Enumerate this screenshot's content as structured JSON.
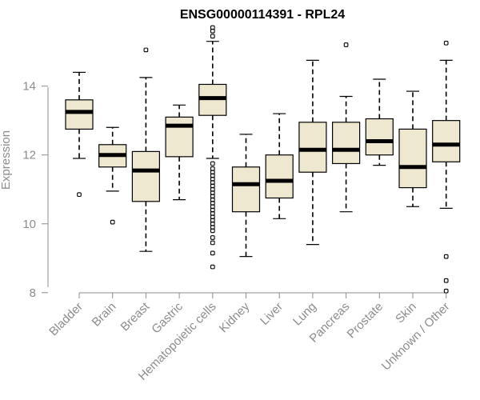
{
  "chart_data": {
    "type": "boxplot",
    "title": "ENSG00000114391 - RPL24",
    "xlabel": "",
    "ylabel": "Expression",
    "ylim": [
      7.95,
      15.85
    ],
    "yticks": [
      8,
      10,
      12,
      14
    ],
    "grid": false,
    "colors": {
      "box_fill": "#efe8d0",
      "median": "#000000",
      "stroke": "#000000"
    },
    "categories": [
      "Bladder",
      "Brain",
      "Breast",
      "Gastric",
      "Hematopoietic cells",
      "Kidney",
      "Liver",
      "Lung",
      "Pancreas",
      "Prostate",
      "Skin",
      "Unknown / Other"
    ],
    "boxes": [
      {
        "q1": 12.75,
        "median": 13.25,
        "q3": 13.6,
        "whisker_low": 11.9,
        "whisker_high": 14.4,
        "outliers": [
          10.85
        ]
      },
      {
        "q1": 11.65,
        "median": 12.0,
        "q3": 12.3,
        "whisker_low": 10.95,
        "whisker_high": 12.8,
        "outliers": [
          10.05
        ]
      },
      {
        "q1": 10.65,
        "median": 11.55,
        "q3": 12.1,
        "whisker_low": 9.2,
        "whisker_high": 14.25,
        "outliers": [
          15.05
        ]
      },
      {
        "q1": 11.95,
        "median": 12.85,
        "q3": 13.1,
        "whisker_low": 10.7,
        "whisker_high": 13.45,
        "outliers": []
      },
      {
        "q1": 13.15,
        "median": 13.65,
        "q3": 14.05,
        "whisker_low": 11.9,
        "whisker_high": 15.3,
        "outliers": [
          15.45,
          15.6,
          15.7,
          11.75,
          11.6,
          11.5,
          11.4,
          11.3,
          11.2,
          11.1,
          11.0,
          10.9,
          10.8,
          10.7,
          10.6,
          10.5,
          10.4,
          10.3,
          10.2,
          10.1,
          10.0,
          9.9,
          9.8,
          9.6,
          9.45,
          9.15,
          8.75
        ]
      },
      {
        "q1": 10.35,
        "median": 11.15,
        "q3": 11.65,
        "whisker_low": 9.05,
        "whisker_high": 12.6,
        "outliers": []
      },
      {
        "q1": 10.75,
        "median": 11.25,
        "q3": 12.0,
        "whisker_low": 10.15,
        "whisker_high": 13.2,
        "outliers": []
      },
      {
        "q1": 11.5,
        "median": 12.15,
        "q3": 12.95,
        "whisker_low": 9.4,
        "whisker_high": 14.75,
        "outliers": []
      },
      {
        "q1": 11.75,
        "median": 12.15,
        "q3": 12.95,
        "whisker_low": 10.35,
        "whisker_high": 13.7,
        "outliers": [
          15.2
        ]
      },
      {
        "q1": 12.0,
        "median": 12.4,
        "q3": 13.05,
        "whisker_low": 11.7,
        "whisker_high": 14.2,
        "outliers": []
      },
      {
        "q1": 11.05,
        "median": 11.65,
        "q3": 12.75,
        "whisker_low": 10.5,
        "whisker_high": 13.85,
        "outliers": []
      },
      {
        "q1": 11.8,
        "median": 12.3,
        "q3": 13.0,
        "whisker_low": 10.45,
        "whisker_high": 14.75,
        "outliers": [
          15.25,
          9.05,
          8.35,
          8.05
        ]
      }
    ]
  }
}
